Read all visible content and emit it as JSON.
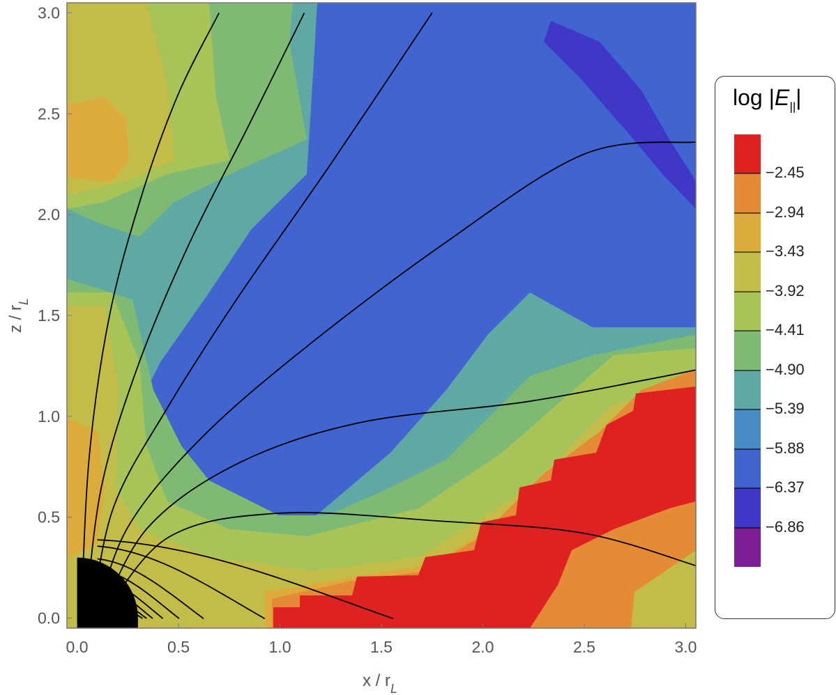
{
  "chart_data": {
    "type": "heatmap",
    "title": "",
    "xlabel": "x / rL",
    "ylabel": "z / rL",
    "xlim": [
      -0.05,
      3.05
    ],
    "ylim": [
      -0.05,
      3.05
    ],
    "x_ticks": [
      "0.0",
      "0.5",
      "1.0",
      "1.5",
      "2.0",
      "2.5",
      "3.0"
    ],
    "y_ticks": [
      "0.0",
      "0.5",
      "1.0",
      "1.5",
      "2.0",
      "2.5",
      "3.0"
    ],
    "colorbar": {
      "title": "log |E||",
      "levels": [
        "-2.45",
        "-2.94",
        "-3.43",
        "-3.92",
        "-4.41",
        "-4.90",
        "-5.39",
        "-5.88",
        "-6.37",
        "-6.86"
      ],
      "colors": [
        "#de2222",
        "#e58a35",
        "#ddaa3c",
        "#c3bc48",
        "#a8c459",
        "#7eba74",
        "#5fa8a3",
        "#4a8bc7",
        "#4065d0",
        "#3f37c5",
        "#7c1f94"
      ]
    },
    "star_radius": 0.3,
    "open_field_lines": [
      {
        "points": [
          [
            0.02,
            0.0
          ],
          [
            0.06,
            0.8
          ],
          [
            0.16,
            1.5
          ],
          [
            0.32,
            2.1
          ],
          [
            0.5,
            2.6
          ],
          [
            0.7,
            3.0
          ]
        ]
      },
      {
        "points": [
          [
            0.04,
            0.0
          ],
          [
            0.12,
            0.65
          ],
          [
            0.3,
            1.25
          ],
          [
            0.55,
            1.85
          ],
          [
            0.85,
            2.45
          ],
          [
            1.12,
            3.0
          ]
        ]
      },
      {
        "points": [
          [
            0.07,
            0.0
          ],
          [
            0.18,
            0.55
          ],
          [
            0.45,
            1.05
          ],
          [
            0.8,
            1.6
          ],
          [
            1.25,
            2.25
          ],
          [
            1.75,
            3.0
          ]
        ]
      },
      {
        "points": [
          [
            0.09,
            0.0
          ],
          [
            0.25,
            0.45
          ],
          [
            0.6,
            0.88
          ],
          [
            1.1,
            1.32
          ],
          [
            1.8,
            1.85
          ],
          [
            2.5,
            2.3
          ],
          [
            3.05,
            2.36
          ]
        ]
      },
      {
        "points": [
          [
            0.11,
            0.0
          ],
          [
            0.35,
            0.45
          ],
          [
            0.8,
            0.77
          ],
          [
            1.4,
            0.97
          ],
          [
            2.2,
            1.07
          ],
          [
            2.8,
            1.18
          ],
          [
            3.05,
            1.23
          ]
        ]
      },
      {
        "points": [
          [
            0.12,
            0.0
          ],
          [
            0.45,
            0.4
          ],
          [
            1.0,
            0.52
          ],
          [
            1.8,
            0.48
          ],
          [
            2.5,
            0.42
          ],
          [
            3.05,
            0.26
          ]
        ]
      }
    ],
    "closed_field_lines": [
      {
        "x_max": 1.55,
        "z_max": 0.36
      },
      {
        "x_max": 0.92,
        "z_max": 0.33
      },
      {
        "x_max": 0.62,
        "z_max": 0.27
      },
      {
        "x_max": 0.5,
        "z_max": 0.22
      },
      {
        "x_max": 0.42,
        "z_max": 0.18
      },
      {
        "x_max": 0.37,
        "z_max": 0.15
      },
      {
        "x_max": 0.34,
        "z_max": 0.12
      },
      {
        "x_max": 0.32,
        "z_max": 0.09
      }
    ]
  }
}
